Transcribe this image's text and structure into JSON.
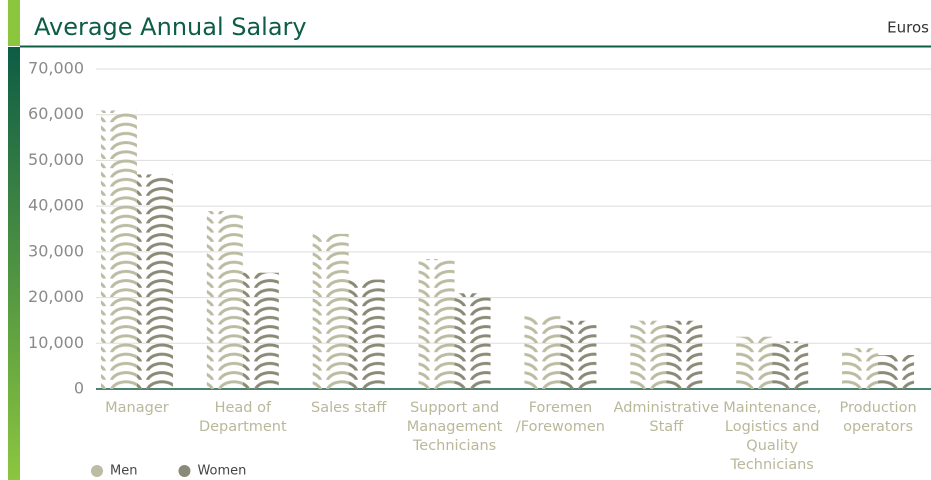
{
  "chart_data": {
    "type": "bar",
    "title": "Average Annual Salary",
    "unit_label": "Euros",
    "categories": [
      "Manager",
      "Head of\nDepartment",
      "Sales staff",
      "Support and\nManagement\nTechnicians",
      "Foremen\n/Forewomen",
      "Administrative\nStaff",
      "Maintenance,\nLogistics and\nQuality Technicians",
      "Production\noperators"
    ],
    "series": [
      {
        "name": "Men",
        "color": "#bcbca2",
        "values": [
          60500,
          38500,
          33500,
          28000,
          15500,
          14500,
          11000,
          8500
        ]
      },
      {
        "name": "Women",
        "color": "#8b8a76",
        "values": [
          46500,
          25000,
          23500,
          20500,
          14500,
          14500,
          10000,
          7000
        ]
      }
    ],
    "ylim": [
      0,
      70000
    ],
    "yticks": [
      0,
      {
        "value": 10000,
        "label": "10,000"
      },
      {
        "value": 20000,
        "label": "20,000"
      },
      {
        "value": 30000,
        "label": "30,000"
      },
      {
        "value": 40000,
        "label": "40,000"
      },
      {
        "value": 50000,
        "label": "50,000"
      },
      {
        "value": 60000,
        "label": "60,000"
      },
      {
        "value": 70000,
        "label": "70,000"
      }
    ],
    "grid": true,
    "legend": "bottom-left"
  }
}
